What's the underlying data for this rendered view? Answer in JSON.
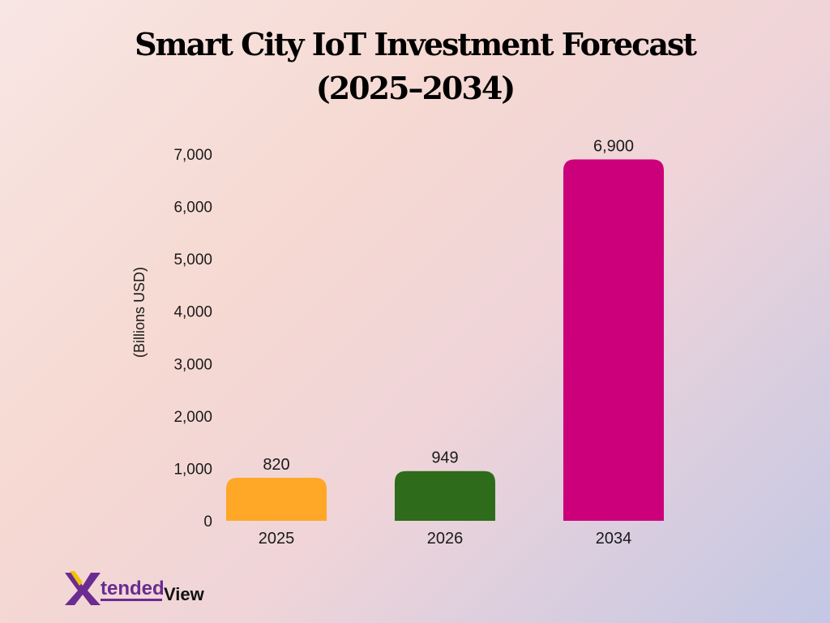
{
  "chart_data": {
    "type": "bar",
    "title_line1": "Smart City IoT Investment Forecast",
    "title_line2": "(2025–2034)",
    "ylabel": "(Billions USD)",
    "categories": [
      "2025",
      "2026",
      "2034"
    ],
    "values": [
      820,
      949,
      6900
    ],
    "value_labels": [
      "820",
      "949",
      "6,900"
    ],
    "colors": [
      "#ffa726",
      "#2e6b1a",
      "#cc007a"
    ],
    "ylim": [
      0,
      7000
    ],
    "yticks": [
      0,
      1000,
      2000,
      3000,
      4000,
      5000,
      6000,
      7000
    ],
    "ytick_labels": [
      "0",
      "1,000",
      "2,000",
      "3,000",
      "4,000",
      "5,000",
      "6,000",
      "7,000"
    ],
    "grid": false,
    "legend": "none"
  },
  "logo": {
    "brand": "XtendedView",
    "part1": "tended",
    "part2": "View",
    "colors": [
      "#f2c200",
      "#6a2c91"
    ]
  }
}
